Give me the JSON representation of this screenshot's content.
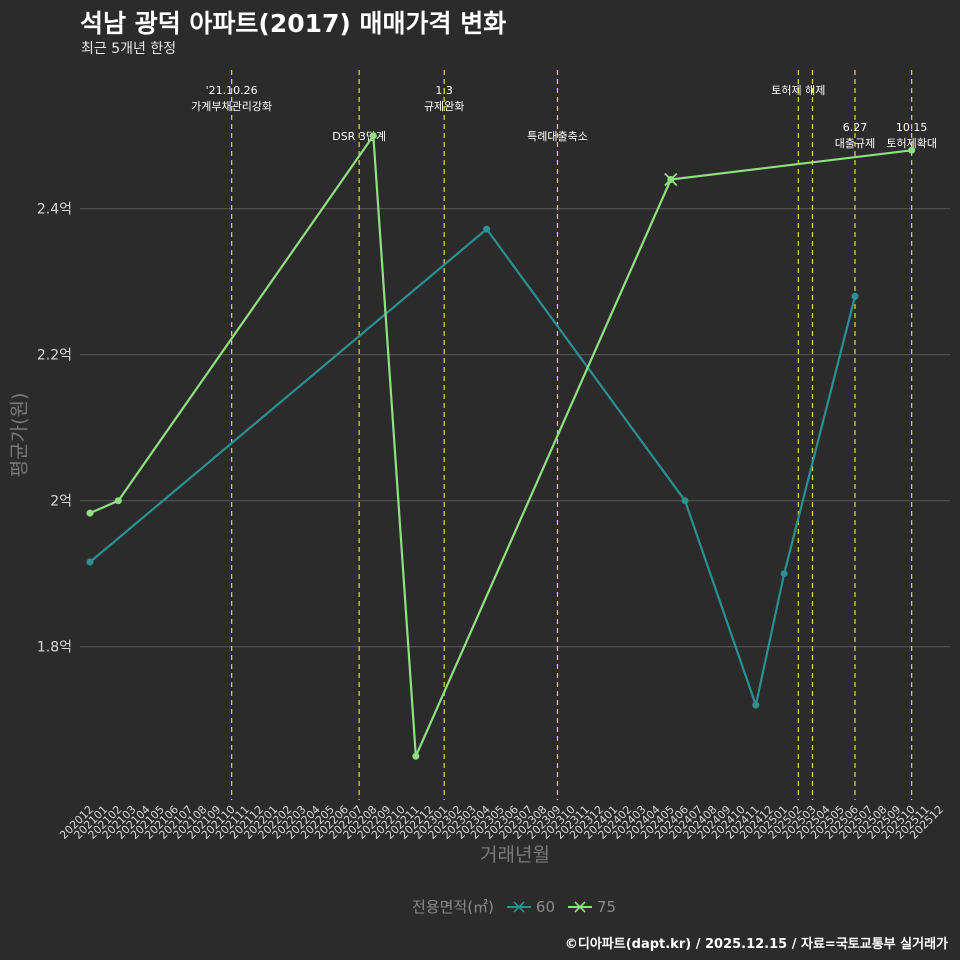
{
  "title": "석남 광덕 아파트(2017) 매매가격 변화",
  "subtitle": "최근 5개년 한정",
  "caption": "©디아파트(dapt.kr) / 2025.12.15 / 자료=국토교통부 실거래가",
  "legend": {
    "title": "전용면적(㎡)",
    "items": [
      "60",
      "75"
    ]
  },
  "colors": {
    "s60": "#2a9090",
    "s75": "#90e080",
    "vline": "#e0e020",
    "grid": "#5a5a5a",
    "tick": "#d8d8d8"
  },
  "chart_data": {
    "type": "line",
    "title": "석남 광덕 아파트(2017) 매매가격 변화",
    "xlabel": "거래년월",
    "ylabel": "평균가(원)",
    "ylim": [
      1.59,
      2.59
    ],
    "yticks": [
      {
        "v": 1.8,
        "label": "1.8억"
      },
      {
        "v": 2.0,
        "label": "2억"
      },
      {
        "v": 2.2,
        "label": "2.2억"
      },
      {
        "v": 2.4,
        "label": "2.4억"
      }
    ],
    "categories": [
      "202012",
      "202101",
      "202102",
      "202103",
      "202104",
      "202105",
      "202106",
      "202107",
      "202108",
      "202109",
      "202110",
      "202111",
      "202112",
      "202201",
      "202202",
      "202203",
      "202204",
      "202205",
      "202206",
      "202207",
      "202208",
      "202209",
      "202210",
      "202211",
      "202212",
      "202301",
      "202302",
      "202303",
      "202304",
      "202305",
      "202306",
      "202307",
      "202308",
      "202309",
      "202310",
      "202311",
      "202312",
      "202401",
      "202402",
      "202403",
      "202404",
      "202405",
      "202406",
      "202407",
      "202408",
      "202409",
      "202410",
      "202411",
      "202412",
      "202501",
      "202502",
      "202503",
      "202504",
      "202505",
      "202506",
      "202507",
      "202508",
      "202509",
      "202510",
      "202511",
      "202512"
    ],
    "series": [
      {
        "name": "60",
        "points": [
          [
            "202012",
            1.916
          ],
          [
            "202304",
            2.372
          ],
          [
            "202406",
            2.0
          ],
          [
            "202411",
            1.72
          ],
          [
            "202501",
            1.9
          ],
          [
            "202506",
            2.28
          ]
        ]
      },
      {
        "name": "75",
        "points": [
          [
            "202012",
            1.983
          ],
          [
            "202102",
            2.0
          ],
          [
            "202208",
            2.5
          ],
          [
            "202211",
            1.65
          ],
          [
            "202405",
            2.44
          ],
          [
            "202510",
            2.48
          ]
        ]
      }
    ],
    "events": [
      {
        "x": "202110",
        "label": [
          "'21.10.26",
          "가계부채관리강화"
        ],
        "row": 1
      },
      {
        "x": "202207",
        "label": [
          "DSR 3단계"
        ],
        "row": 2
      },
      {
        "x": "202301",
        "label": [
          "1.3",
          "규제완화"
        ],
        "row": 1
      },
      {
        "x": "202309",
        "label": [
          "특례대출축소"
        ],
        "row": 2
      },
      {
        "x": "202502",
        "label": [
          "토허제 해제"
        ],
        "row": 1
      },
      {
        "x": "202503",
        "label": [],
        "row": 1
      },
      {
        "x": "202506",
        "label": [
          "6.27",
          "대출규제"
        ],
        "row": 3
      },
      {
        "x": "202510",
        "label": [
          "10.15",
          "토허제확대"
        ],
        "row": 3
      }
    ]
  }
}
